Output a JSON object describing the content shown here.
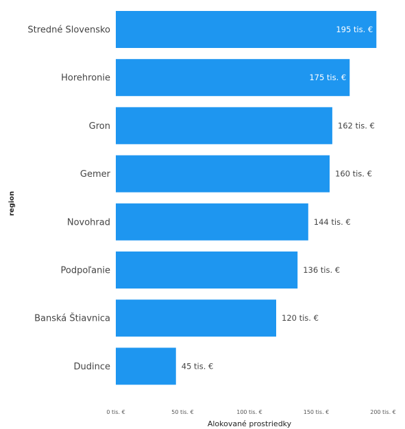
{
  "chart_data": {
    "type": "bar",
    "orientation": "horizontal",
    "categories": [
      "Stredné Slovensko",
      "Horehronie",
      "Gron",
      "Gemer",
      "Novohrad",
      "Podpoľanie",
      "Banská Štiavnica",
      "Dudince"
    ],
    "values": [
      195,
      175,
      162,
      160,
      144,
      136,
      120,
      45
    ],
    "data_labels": [
      "195 tis. €",
      "175 tis. €",
      "162 tis. €",
      "160 tis. €",
      "144 tis. €",
      "136 tis. €",
      "120 tis. €",
      "45 tis. €"
    ],
    "xlabel": "Alokované prostriedky",
    "ylabel": "region",
    "xlim": [
      0,
      200
    ],
    "x_ticks": [
      0,
      50,
      100,
      150,
      200
    ],
    "x_tick_labels": [
      "0 tis. €",
      "50 tis. €",
      "100 tis. €",
      "150 tis. €",
      "200 tis. €"
    ],
    "grid": false,
    "bar_color": "#1e96f0",
    "label_color_inside": "#ffffff",
    "label_color_outside": "#444444"
  }
}
